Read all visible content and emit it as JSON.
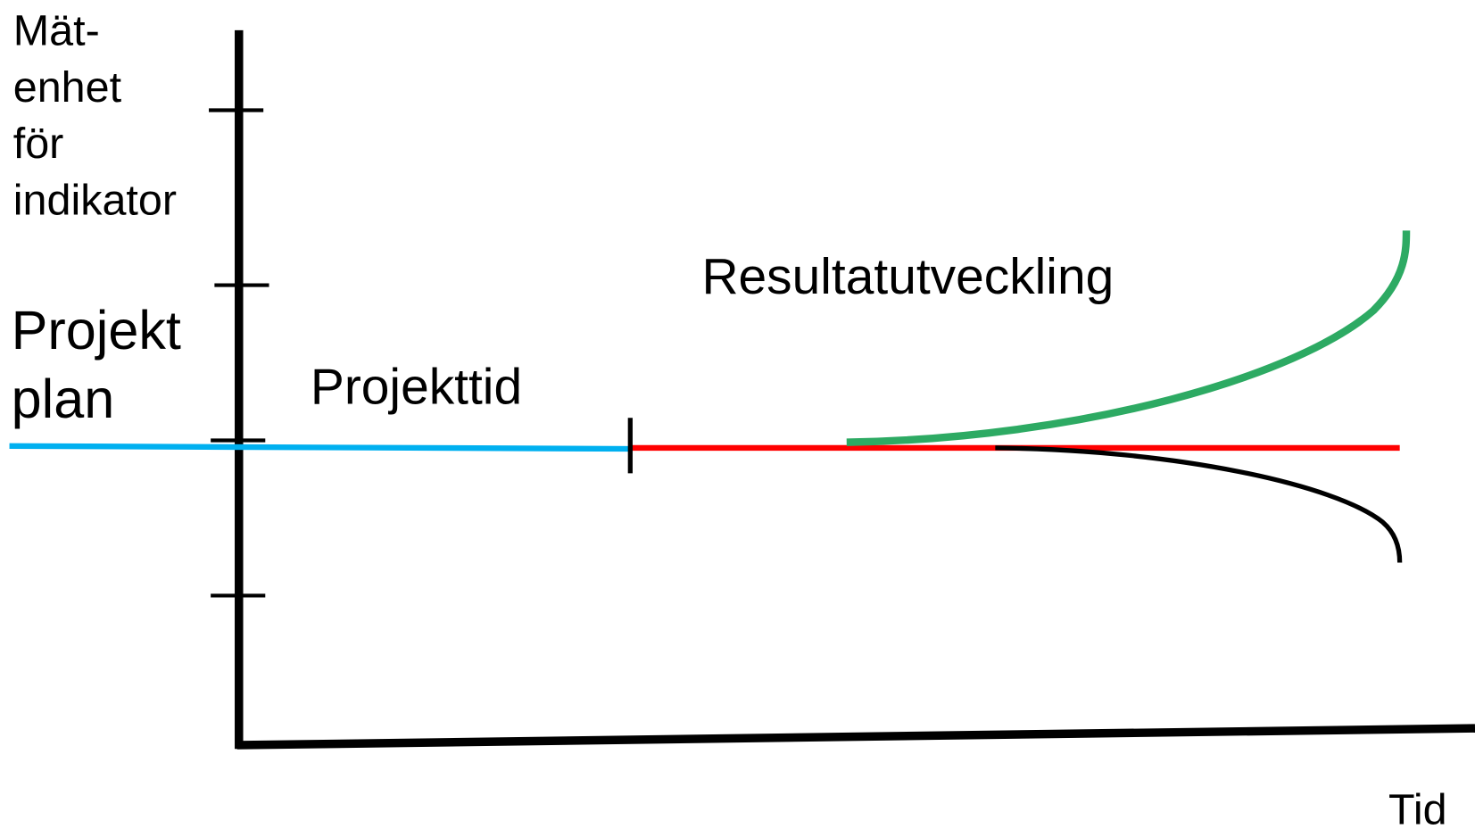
{
  "axis": {
    "y_label_lines": [
      "Mät-",
      "enhet",
      "för",
      "indikator"
    ],
    "x_label": "Tid"
  },
  "labels": {
    "plan_lines": [
      "Projekt",
      "plan"
    ],
    "project_time": "Projekttid",
    "result": "Resultatutveckling"
  }
}
